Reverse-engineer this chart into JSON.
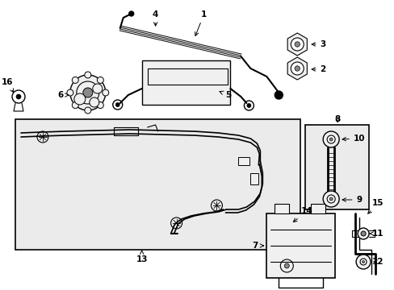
{
  "bg_color": "#ffffff",
  "box_color": "#ebebeb",
  "line_color": "#000000",
  "gray": "#cccccc"
}
